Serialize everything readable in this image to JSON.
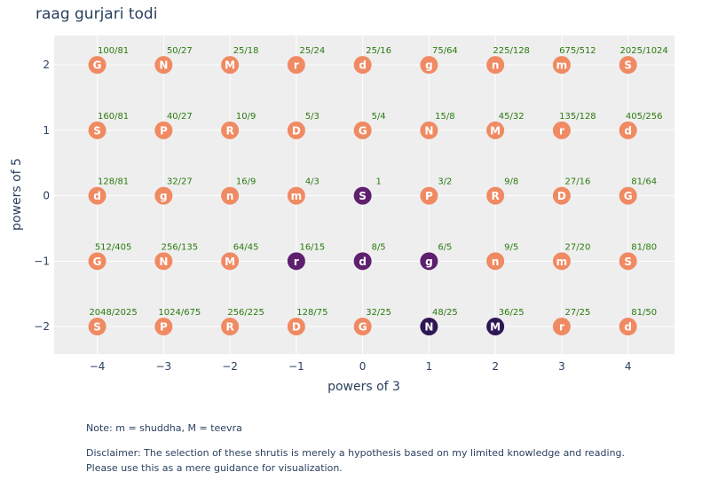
{
  "chart_data": {
    "type": "scatter",
    "title": "raag gurjari todi",
    "xlabel": "powers of 3",
    "ylabel": "powers of 5",
    "xlim": [
      -4.65,
      4.7
    ],
    "ylim": [
      -2.42,
      2.45
    ],
    "xticks": [
      -4,
      -3,
      -2,
      -1,
      0,
      1,
      2,
      3,
      4
    ],
    "yticks": [
      -2,
      -1,
      0,
      1,
      2
    ],
    "xtick_labels": [
      "−4",
      "−3",
      "−2",
      "−1",
      "0",
      "1",
      "2",
      "3",
      "4"
    ],
    "ytick_labels": [
      "−2",
      "−1",
      "0",
      "1",
      "2"
    ],
    "grid": true,
    "colors": {
      "default": "#f08a62",
      "selected": "#5e1f6e",
      "selected_dark": "#2f1756",
      "ratio_text": "#2a7a0e",
      "plot_bg": "#eeeeee"
    },
    "points": [
      {
        "x": -4,
        "y": 2,
        "note": "G",
        "ratio": "100/81",
        "state": "default"
      },
      {
        "x": -3,
        "y": 2,
        "note": "N",
        "ratio": "50/27",
        "state": "default"
      },
      {
        "x": -2,
        "y": 2,
        "note": "M",
        "ratio": "25/18",
        "state": "default"
      },
      {
        "x": -1,
        "y": 2,
        "note": "r",
        "ratio": "25/24",
        "state": "default"
      },
      {
        "x": 0,
        "y": 2,
        "note": "d",
        "ratio": "25/16",
        "state": "default"
      },
      {
        "x": 1,
        "y": 2,
        "note": "g",
        "ratio": "75/64",
        "state": "default"
      },
      {
        "x": 2,
        "y": 2,
        "note": "n",
        "ratio": "225/128",
        "state": "default"
      },
      {
        "x": 3,
        "y": 2,
        "note": "m",
        "ratio": "675/512",
        "state": "default"
      },
      {
        "x": 4,
        "y": 2,
        "note": "S",
        "ratio": "2025/1024",
        "state": "default"
      },
      {
        "x": -4,
        "y": 1,
        "note": "S",
        "ratio": "160/81",
        "state": "default"
      },
      {
        "x": -3,
        "y": 1,
        "note": "P",
        "ratio": "40/27",
        "state": "default"
      },
      {
        "x": -2,
        "y": 1,
        "note": "R",
        "ratio": "10/9",
        "state": "default"
      },
      {
        "x": -1,
        "y": 1,
        "note": "D",
        "ratio": "5/3",
        "state": "default"
      },
      {
        "x": 0,
        "y": 1,
        "note": "G",
        "ratio": "5/4",
        "state": "default"
      },
      {
        "x": 1,
        "y": 1,
        "note": "N",
        "ratio": "15/8",
        "state": "default"
      },
      {
        "x": 2,
        "y": 1,
        "note": "M",
        "ratio": "45/32",
        "state": "default"
      },
      {
        "x": 3,
        "y": 1,
        "note": "r",
        "ratio": "135/128",
        "state": "default"
      },
      {
        "x": 4,
        "y": 1,
        "note": "d",
        "ratio": "405/256",
        "state": "default"
      },
      {
        "x": -4,
        "y": 0,
        "note": "d",
        "ratio": "128/81",
        "state": "default"
      },
      {
        "x": -3,
        "y": 0,
        "note": "g",
        "ratio": "32/27",
        "state": "default"
      },
      {
        "x": -2,
        "y": 0,
        "note": "n",
        "ratio": "16/9",
        "state": "default"
      },
      {
        "x": -1,
        "y": 0,
        "note": "m",
        "ratio": "4/3",
        "state": "default"
      },
      {
        "x": 0,
        "y": 0,
        "note": "S",
        "ratio": "1",
        "state": "selected"
      },
      {
        "x": 1,
        "y": 0,
        "note": "P",
        "ratio": "3/2",
        "state": "default"
      },
      {
        "x": 2,
        "y": 0,
        "note": "R",
        "ratio": "9/8",
        "state": "default"
      },
      {
        "x": 3,
        "y": 0,
        "note": "D",
        "ratio": "27/16",
        "state": "default"
      },
      {
        "x": 4,
        "y": 0,
        "note": "G",
        "ratio": "81/64",
        "state": "default"
      },
      {
        "x": -4,
        "y": -1,
        "note": "G",
        "ratio": "512/405",
        "state": "default"
      },
      {
        "x": -3,
        "y": -1,
        "note": "N",
        "ratio": "256/135",
        "state": "default"
      },
      {
        "x": -2,
        "y": -1,
        "note": "M",
        "ratio": "64/45",
        "state": "default"
      },
      {
        "x": -1,
        "y": -1,
        "note": "r",
        "ratio": "16/15",
        "state": "selected"
      },
      {
        "x": 0,
        "y": -1,
        "note": "d",
        "ratio": "8/5",
        "state": "selected"
      },
      {
        "x": 1,
        "y": -1,
        "note": "g",
        "ratio": "6/5",
        "state": "selected"
      },
      {
        "x": 2,
        "y": -1,
        "note": "n",
        "ratio": "9/5",
        "state": "default"
      },
      {
        "x": 3,
        "y": -1,
        "note": "m",
        "ratio": "27/20",
        "state": "default"
      },
      {
        "x": 4,
        "y": -1,
        "note": "S",
        "ratio": "81/80",
        "state": "default"
      },
      {
        "x": -4,
        "y": -2,
        "note": "S",
        "ratio": "2048/2025",
        "state": "default"
      },
      {
        "x": -3,
        "y": -2,
        "note": "P",
        "ratio": "1024/675",
        "state": "default"
      },
      {
        "x": -2,
        "y": -2,
        "note": "R",
        "ratio": "256/225",
        "state": "default"
      },
      {
        "x": -1,
        "y": -2,
        "note": "D",
        "ratio": "128/75",
        "state": "default"
      },
      {
        "x": 0,
        "y": -2,
        "note": "G",
        "ratio": "32/25",
        "state": "default"
      },
      {
        "x": 1,
        "y": -2,
        "note": "N",
        "ratio": "48/25",
        "state": "selected_dark"
      },
      {
        "x": 2,
        "y": -2,
        "note": "M",
        "ratio": "36/25",
        "state": "selected_dark"
      },
      {
        "x": 3,
        "y": -2,
        "note": "r",
        "ratio": "27/25",
        "state": "default"
      },
      {
        "x": 4,
        "y": -2,
        "note": "d",
        "ratio": "81/50",
        "state": "default"
      }
    ]
  },
  "notes": {
    "note_line": "Note: m = shuddha, M = teevra",
    "disclaimer_line1": "Disclaimer: The selection of these shrutis is merely a hypothesis based on my limited knowledge and reading.",
    "disclaimer_line2": "Please use this as a mere guidance for visualization."
  }
}
